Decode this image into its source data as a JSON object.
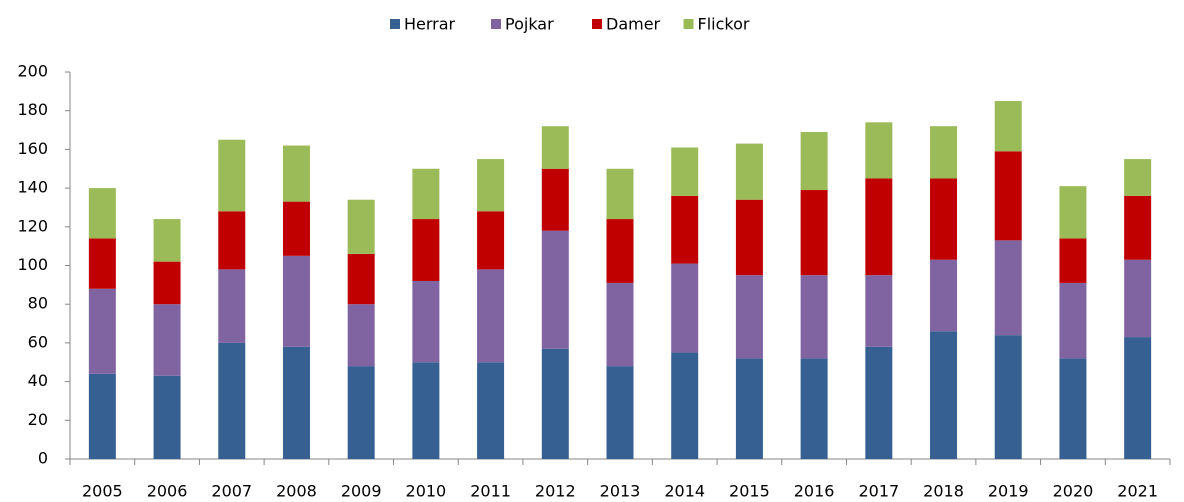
{
  "chart_data": {
    "type": "stacked_bar",
    "categories": [
      "2005",
      "2006",
      "2007",
      "2008",
      "2009",
      "2010",
      "2011",
      "2012",
      "2013",
      "2014",
      "2015",
      "2016",
      "2017",
      "2018",
      "2019",
      "2020",
      "2021"
    ],
    "series": [
      {
        "name": "Herrar",
        "color": "#376092",
        "values": [
          44,
          43,
          60,
          58,
          48,
          50,
          50,
          57,
          48,
          55,
          52,
          52,
          58,
          66,
          64,
          52,
          63
        ]
      },
      {
        "name": "Pojkar",
        "color": "#8064a2",
        "values": [
          44,
          37,
          38,
          47,
          32,
          42,
          48,
          61,
          43,
          46,
          43,
          43,
          37,
          37,
          49,
          39,
          40
        ]
      },
      {
        "name": "Damer",
        "color": "#c00000",
        "values": [
          26,
          22,
          30,
          28,
          26,
          32,
          30,
          32,
          33,
          35,
          39,
          44,
          50,
          42,
          46,
          23,
          33
        ]
      },
      {
        "name": "Flickor",
        "color": "#9bbb59",
        "values": [
          26,
          22,
          37,
          29,
          28,
          26,
          27,
          22,
          26,
          25,
          29,
          30,
          29,
          27,
          26,
          27,
          19
        ]
      }
    ],
    "ylim": [
      0,
      200
    ],
    "yticks": [
      0,
      20,
      40,
      60,
      80,
      100,
      120,
      140,
      160,
      180,
      200
    ],
    "legend": "top",
    "grid": false
  }
}
